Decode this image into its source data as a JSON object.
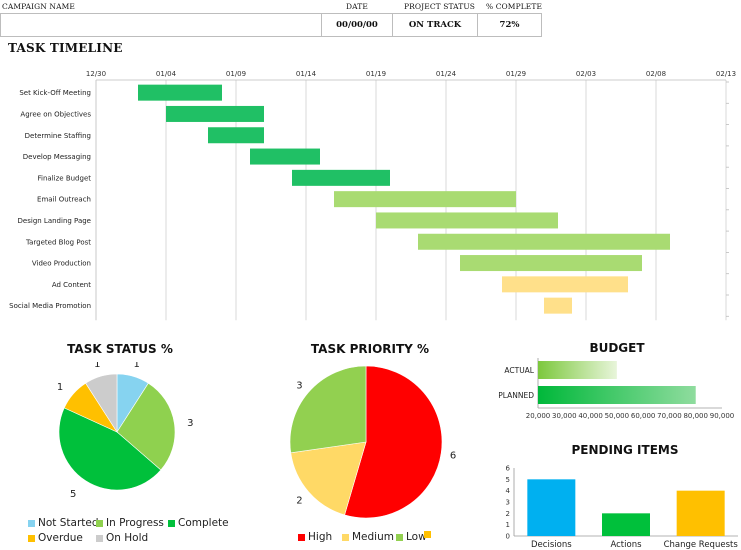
{
  "header": {
    "labels": {
      "campaign_name": "CAMPAIGN NAME",
      "date": "DATE",
      "project_status": "PROJECT  STATUS",
      "percent_complete": "% COMPLETE"
    },
    "values": {
      "campaign_name": "",
      "date": "00/00/00",
      "project_status": "ON TRACK",
      "percent_complete": "72%"
    }
  },
  "timeline": {
    "title": "TASK TIMELINE"
  },
  "task_status": {
    "title": "TASK STATUS %"
  },
  "task_priority": {
    "title": "TASK PRIORITY %"
  },
  "budget": {
    "title": "BUDGET"
  },
  "pending_items": {
    "title": "PENDING ITEMS"
  },
  "colors": {
    "gantt_dark": "#20c065",
    "gantt_light": "#a9db72",
    "gantt_yellow": "#ffe08a",
    "not_started": "#86d3f0",
    "in_progress": "#8fd14f",
    "complete": "#00c03b",
    "overdue": "#ffc000",
    "on_hold": "#cccccc",
    "high": "#ff0000",
    "medium": "#ffd966",
    "low": "#92d050",
    "decisions": "#00b0f0",
    "actions": "#00c03b",
    "change_requests": "#ffc000"
  },
  "chart_data": [
    {
      "id": "gantt",
      "type": "bar",
      "title": "TASK TIMELINE",
      "x_ticks": [
        "12/30",
        "01/04",
        "01/09",
        "01/14",
        "01/19",
        "01/24",
        "01/29",
        "02/03",
        "02/08",
        "02/13"
      ],
      "xlim": [
        "12/30",
        "02/13"
      ],
      "tasks": [
        {
          "name": "Set Kick-Off Meeting",
          "start": "01/02",
          "end": "01/08",
          "color": "dark"
        },
        {
          "name": "Agree on Objectives",
          "start": "01/04",
          "end": "01/11",
          "color": "dark"
        },
        {
          "name": "Determine Staffing",
          "start": "01/07",
          "end": "01/11",
          "color": "dark"
        },
        {
          "name": "Develop Messaging",
          "start": "01/10",
          "end": "01/15",
          "color": "dark"
        },
        {
          "name": "Finalize Budget",
          "start": "01/13",
          "end": "01/20",
          "color": "dark"
        },
        {
          "name": "Email Outreach",
          "start": "01/16",
          "end": "01/29",
          "color": "light"
        },
        {
          "name": "Design Landing Page",
          "start": "01/19",
          "end": "02/01",
          "color": "light"
        },
        {
          "name": "Targeted Blog Post",
          "start": "01/22",
          "end": "02/09",
          "color": "light"
        },
        {
          "name": "Video Production",
          "start": "01/25",
          "end": "02/07",
          "color": "light"
        },
        {
          "name": "Ad Content",
          "start": "01/28",
          "end": "02/06",
          "color": "yellow"
        },
        {
          "name": "Social Media Promotion",
          "start": "01/31",
          "end": "02/02",
          "color": "yellow"
        }
      ],
      "grid": true
    },
    {
      "id": "task_status",
      "type": "pie",
      "title": "TASK STATUS %",
      "slices": [
        {
          "label": "Not Started",
          "value": 1,
          "color_key": "not_started"
        },
        {
          "label": "In Progress",
          "value": 3,
          "color_key": "in_progress"
        },
        {
          "label": "Complete",
          "value": 5,
          "color_key": "complete"
        },
        {
          "label": "Overdue",
          "value": 1,
          "color_key": "overdue"
        },
        {
          "label": "On Hold",
          "value": 1,
          "color_key": "on_hold"
        }
      ],
      "legend_position": "bottom"
    },
    {
      "id": "task_priority",
      "type": "pie",
      "title": "TASK PRIORITY %",
      "slices": [
        {
          "label": "High",
          "value": 6,
          "color_key": "high"
        },
        {
          "label": "Medium",
          "value": 2,
          "color_key": "medium"
        },
        {
          "label": "Low",
          "value": 3,
          "color_key": "low"
        }
      ],
      "legend_extra_swatch": "overdue",
      "legend_position": "bottom"
    },
    {
      "id": "budget",
      "type": "bar",
      "orientation": "horizontal",
      "title": "BUDGET",
      "categories": [
        "ACTUAL",
        "PLANNED"
      ],
      "values": [
        50000,
        80000
      ],
      "xlim": [
        20000,
        90000
      ],
      "x_ticks": [
        "20,000",
        "30,000",
        "40,000",
        "50,000",
        "60,000",
        "70,000",
        "80,000",
        "90,000"
      ]
    },
    {
      "id": "pending_items",
      "type": "bar",
      "title": "PENDING ITEMS",
      "categories": [
        "Decisions",
        "Actions",
        "Change Requests"
      ],
      "values": [
        5,
        2,
        4
      ],
      "ylim": [
        0,
        6
      ],
      "y_ticks": [
        "0",
        "1",
        "2",
        "3",
        "4",
        "5",
        "6"
      ]
    }
  ]
}
